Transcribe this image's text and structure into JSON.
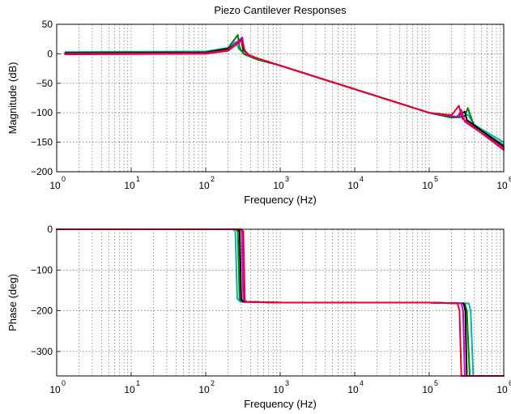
{
  "chart_data": [
    {
      "type": "line",
      "title": "Piezo Cantilever Responses",
      "xlabel": "Frequency (Hz)",
      "ylabel": "Magnitude (dB)",
      "xscale": "log",
      "xlim": [
        1,
        1000000
      ],
      "ylim": [
        -200,
        50
      ],
      "grid": true,
      "x_ticks": [
        1,
        10,
        100,
        1000,
        10000,
        100000,
        1000000
      ],
      "x_tick_labels": [
        {
          "base": "10",
          "exp": "0"
        },
        {
          "base": "10",
          "exp": "1"
        },
        {
          "base": "10",
          "exp": "2"
        },
        {
          "base": "10",
          "exp": "3"
        },
        {
          "base": "10",
          "exp": "4"
        },
        {
          "base": "10",
          "exp": "5"
        },
        {
          "base": "10",
          "exp": "6"
        }
      ],
      "y_ticks": [
        50,
        0,
        -50,
        -100,
        -150,
        -200
      ],
      "y_tick_labels": [
        "50",
        "0",
        "−50",
        "−100",
        "−150",
        "−200"
      ],
      "series": [
        {
          "color": "#00b3b3",
          "values": [
            [
              1.3,
              3
            ],
            [
              100,
              4
            ],
            [
              200,
              10
            ],
            [
              250,
              20
            ],
            [
              280,
              8
            ],
            [
              330,
              0
            ],
            [
              500,
              -9
            ],
            [
              1000,
              -20
            ],
            [
              10000,
              -60
            ],
            [
              100000,
              -100
            ],
            [
              190000,
              -108
            ],
            [
              260000,
              -108
            ],
            [
              330000,
              -103
            ],
            [
              400000,
              -120
            ],
            [
              1000000,
              -150
            ]
          ]
        },
        {
          "color": "#008000",
          "values": [
            [
              1.3,
              2
            ],
            [
              100,
              3
            ],
            [
              200,
              10
            ],
            [
              270,
              32
            ],
            [
              285,
              10
            ],
            [
              330,
              -1
            ],
            [
              500,
              -10
            ],
            [
              1000,
              -20
            ],
            [
              10000,
              -60
            ],
            [
              100000,
              -100
            ],
            [
              200000,
              -108
            ],
            [
              300000,
              -106
            ],
            [
              330000,
              -92
            ],
            [
              400000,
              -122
            ],
            [
              1000000,
              -155
            ]
          ]
        },
        {
          "color": "#000000",
          "values": [
            [
              1.3,
              1
            ],
            [
              100,
              2
            ],
            [
              200,
              8
            ],
            [
              300,
              24
            ],
            [
              320,
              6
            ],
            [
              400,
              -4
            ],
            [
              1000,
              -20
            ],
            [
              10000,
              -60
            ],
            [
              100000,
              -100
            ],
            [
              230000,
              -107
            ],
            [
              300000,
              -98
            ],
            [
              320000,
              -112
            ],
            [
              1000000,
              -158
            ]
          ]
        },
        {
          "color": "#cc00cc",
          "values": [
            [
              1.3,
              0
            ],
            [
              100,
              1
            ],
            [
              200,
              6
            ],
            [
              310,
              28
            ],
            [
              330,
              6
            ],
            [
              400,
              -4
            ],
            [
              1000,
              -20
            ],
            [
              10000,
              -60
            ],
            [
              100000,
              -100
            ],
            [
              240000,
              -107
            ],
            [
              270000,
              -95
            ],
            [
              300000,
              -115
            ],
            [
              1000000,
              -160
            ]
          ]
        },
        {
          "color": "#e6002e",
          "values": [
            [
              1.3,
              -1
            ],
            [
              100,
              0
            ],
            [
              200,
              5
            ],
            [
              300,
              22
            ],
            [
              350,
              0
            ],
            [
              500,
              -8
            ],
            [
              1000,
              -20
            ],
            [
              10000,
              -60
            ],
            [
              100000,
              -100
            ],
            [
              200000,
              -104
            ],
            [
              250000,
              -88
            ],
            [
              280000,
              -110
            ],
            [
              1000000,
              -163
            ]
          ]
        }
      ]
    },
    {
      "type": "line",
      "xlabel": "Frequency (Hz)",
      "ylabel": "Phase (deg)",
      "xscale": "log",
      "xlim": [
        1,
        1000000
      ],
      "ylim": [
        -360,
        0
      ],
      "grid": true,
      "x_ticks": [
        1,
        10,
        100,
        1000,
        10000,
        100000,
        1000000
      ],
      "x_tick_labels": [
        {
          "base": "10",
          "exp": "0"
        },
        {
          "base": "10",
          "exp": "1"
        },
        {
          "base": "10",
          "exp": "2"
        },
        {
          "base": "10",
          "exp": "3"
        },
        {
          "base": "10",
          "exp": "4"
        },
        {
          "base": "10",
          "exp": "5"
        },
        {
          "base": "10",
          "exp": "6"
        }
      ],
      "y_ticks": [
        0,
        -100,
        -200,
        -300
      ],
      "y_tick_labels": [
        "0",
        "−100",
        "−200",
        "−300"
      ],
      "series": [
        {
          "color": "#00b3b3",
          "values": [
            [
              1,
              0
            ],
            [
              230,
              0
            ],
            [
              250,
              -5
            ],
            [
              265,
              -170
            ],
            [
              290,
              -178
            ],
            [
              1000,
              -180
            ],
            [
              100000,
              -180
            ],
            [
              340000,
              -182
            ],
            [
              360000,
              -200
            ],
            [
              390000,
              -360
            ],
            [
              1000000,
              -360
            ]
          ]
        },
        {
          "color": "#008000",
          "values": [
            [
              1,
              0
            ],
            [
              255,
              0
            ],
            [
              270,
              -5
            ],
            [
              285,
              -172
            ],
            [
              310,
              -178
            ],
            [
              1000,
              -180
            ],
            [
              100000,
              -180
            ],
            [
              300000,
              -182
            ],
            [
              320000,
              -200
            ],
            [
              350000,
              -360
            ],
            [
              1000000,
              -360
            ]
          ]
        },
        {
          "color": "#000000",
          "values": [
            [
              1,
              0
            ],
            [
              270,
              0
            ],
            [
              285,
              -5
            ],
            [
              300,
              -173
            ],
            [
              330,
              -178
            ],
            [
              1000,
              -180
            ],
            [
              100000,
              -180
            ],
            [
              290000,
              -182
            ],
            [
              305000,
              -200
            ],
            [
              320000,
              -360
            ],
            [
              1000000,
              -360
            ]
          ]
        },
        {
          "color": "#cc00cc",
          "values": [
            [
              1,
              0
            ],
            [
              290,
              0
            ],
            [
              305,
              -5
            ],
            [
              320,
              -174
            ],
            [
              350,
              -178
            ],
            [
              1000,
              -180
            ],
            [
              100000,
              -180
            ],
            [
              270000,
              -182
            ],
            [
              285000,
              -200
            ],
            [
              300000,
              -360
            ],
            [
              1000000,
              -360
            ]
          ]
        },
        {
          "color": "#e6002e",
          "values": [
            [
              1,
              0
            ],
            [
              300,
              0
            ],
            [
              320,
              -5
            ],
            [
              335,
              -175
            ],
            [
              360,
              -178
            ],
            [
              1000,
              -180
            ],
            [
              100000,
              -180
            ],
            [
              240000,
              -182
            ],
            [
              255000,
              -200
            ],
            [
              270000,
              -360
            ],
            [
              1000000,
              -360
            ]
          ]
        }
      ]
    }
  ]
}
